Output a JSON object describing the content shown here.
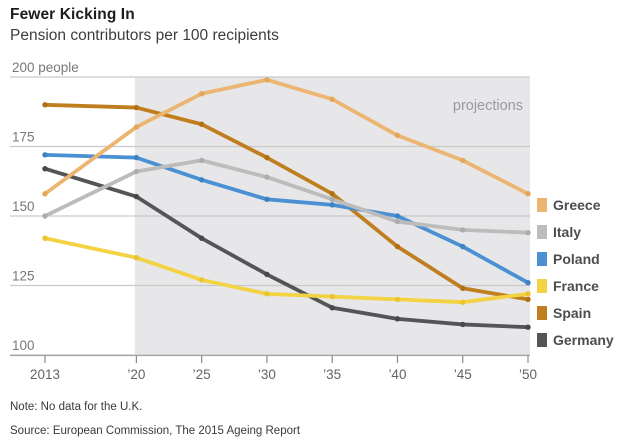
{
  "header": {
    "title": "Fewer Kicking In",
    "subtitle": "Pension contributors per 100 recipients"
  },
  "chart_data": {
    "type": "line",
    "x": [
      2013,
      2020,
      2025,
      2030,
      2035,
      2040,
      2045,
      2050
    ],
    "x_tick_labels": [
      "2013",
      "’20",
      "’25",
      "’30",
      "’35",
      "’40",
      "’45",
      "’50"
    ],
    "y_ticks": [
      100,
      125,
      150,
      175,
      200
    ],
    "y_tick_labels": [
      "100",
      "125",
      "150",
      "175",
      "200 people"
    ],
    "ylim": [
      100,
      200
    ],
    "grid": "horizontal",
    "legend_position": "right",
    "projection_start_year": 2020,
    "projection_label": "projections",
    "projection_fill": "#E7E7E9",
    "gridline_color": "#C9C9CB",
    "series": [
      {
        "name": "Greece",
        "color": "#ECB571",
        "marker_color": "#E3A757",
        "values": [
          158,
          182,
          194,
          199,
          192,
          179,
          170,
          158
        ]
      },
      {
        "name": "Italy",
        "color": "#BCBCBC",
        "marker_color": "#ADADAD",
        "values": [
          150,
          166,
          170,
          164,
          156,
          148,
          145,
          144
        ]
      },
      {
        "name": "Poland",
        "color": "#4B90D2",
        "marker_color": "#3C82C4",
        "values": [
          172,
          171,
          163,
          156,
          154,
          150,
          139,
          126
        ]
      },
      {
        "name": "France",
        "color": "#F3D344",
        "marker_color": "#ECC42E",
        "values": [
          142,
          135,
          127,
          122,
          121,
          120,
          119,
          122
        ]
      },
      {
        "name": "Spain",
        "color": "#C07E1E",
        "marker_color": "#B27012",
        "values": [
          190,
          189,
          183,
          171,
          158,
          139,
          124,
          120
        ]
      },
      {
        "name": "Germany",
        "color": "#545557",
        "marker_color": "#47484A",
        "values": [
          167,
          157,
          142,
          129,
          117,
          113,
          111,
          110
        ]
      }
    ]
  },
  "footer": {
    "note": "Note: No data for the U.K.",
    "source": "Source: European Commission, The 2015 Ageing Report"
  }
}
